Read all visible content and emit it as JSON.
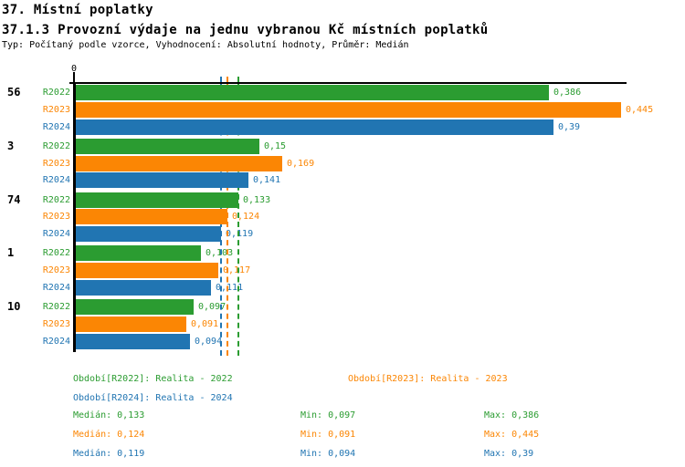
{
  "header": {
    "title": "37. Místní poplatky",
    "subtitle": "37.1.3 Provozní výdaje na jednu vybranou Kč místních poplatků",
    "meta": "Typ: Počítaný podle vzorce, Vyhodnocení: Absolutní hodnoty, Průměr: Medián"
  },
  "chart_data": {
    "type": "bar",
    "orientation": "horizontal",
    "title": "37.1.3 Provozní výdaje na jednu vybranou Kč místních poplatků",
    "value_axis": {
      "zero_label": "0",
      "xlim": [
        0,
        0.49
      ],
      "grid": false
    },
    "categories": [
      "56",
      "3",
      "74",
      "1",
      "10"
    ],
    "series": [
      {
        "name": "R2022",
        "color": "#2b9c31",
        "values": [
          0.386,
          0.15,
          0.133,
          0.103,
          0.097
        ],
        "value_labels": [
          "0,386",
          "0,15",
          "0,133",
          "0,103",
          "0,097"
        ],
        "median": 0.133,
        "legend_label": "Období[R2022]: Realita - 2022",
        "stats": {
          "median": "Medián: 0,133",
          "min": "Min: 0,097",
          "max": "Max: 0,386"
        }
      },
      {
        "name": "R2023",
        "color": "#fb8604",
        "values": [
          0.445,
          0.169,
          0.124,
          0.117,
          0.091
        ],
        "value_labels": [
          "0,445",
          "0,169",
          "0,124",
          "0,117",
          "0,091"
        ],
        "median": 0.124,
        "legend_label": "Období[R2023]: Realita - 2023",
        "stats": {
          "median": "Medián: 0,124",
          "min": "Min: 0,091",
          "max": "Max: 0,445"
        }
      },
      {
        "name": "R2024",
        "color": "#2175b2",
        "values": [
          0.39,
          0.141,
          0.119,
          0.111,
          0.094
        ],
        "value_labels": [
          "0,39",
          "0,141",
          "0,119",
          "0,111",
          "0,094"
        ],
        "median": 0.119,
        "legend_label": "Období[R2024]: Realita - 2024",
        "stats": {
          "median": "Medián: 0,119",
          "min": "Min: 0,094",
          "max": "Max: 0,39"
        }
      }
    ],
    "legend_position": "bottom"
  }
}
